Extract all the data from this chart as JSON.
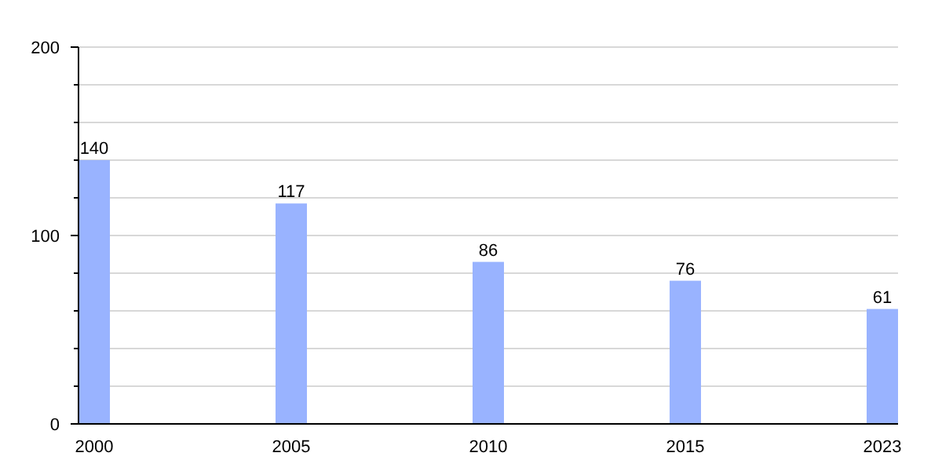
{
  "chart_data": {
    "type": "bar",
    "categories": [
      "2000",
      "2005",
      "2010",
      "2015",
      "2023"
    ],
    "values": [
      140,
      117,
      86,
      76,
      61
    ],
    "color": "#99b3ff",
    "ylim": [
      0,
      200
    ],
    "yticks": [
      0,
      {
        "value": 20,
        "label": null
      },
      {
        "value": 40,
        "label": null
      },
      {
        "value": 60,
        "label": null
      },
      {
        "value": 80,
        "label": null
      },
      100,
      {
        "value": 120,
        "label": null
      },
      {
        "value": 140,
        "label": null
      },
      {
        "value": 160,
        "label": null
      },
      {
        "value": 180,
        "label": null
      },
      200
    ],
    "grid": true,
    "data_labels": true
  }
}
